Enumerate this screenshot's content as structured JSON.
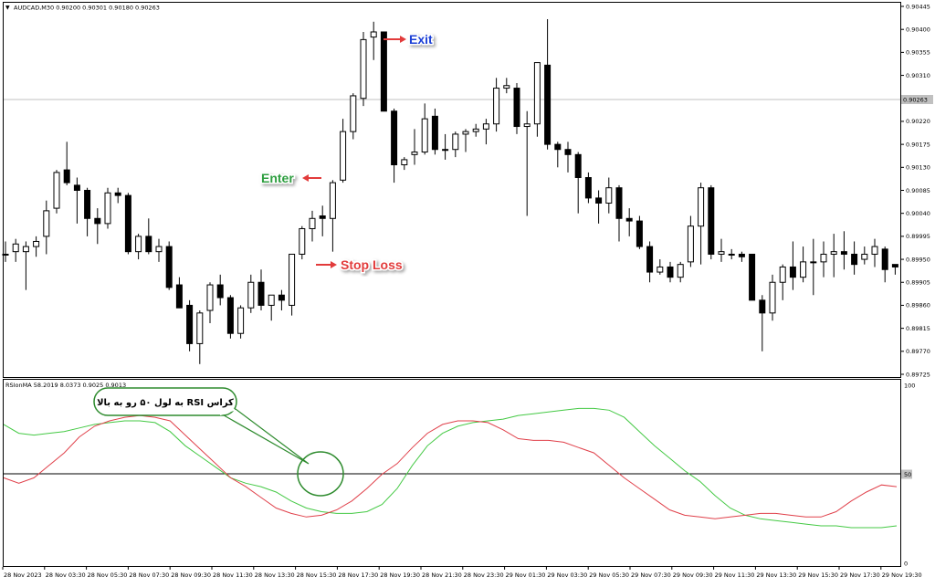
{
  "symbol_info": "AUDCAD,M30  0.90200 0.90301 0.90180 0.90263",
  "current_price_label": "0.90263",
  "price_axis_labels": [
    "0.90445",
    "0.90400",
    "0.90355",
    "0.90310",
    "0.90220",
    "0.90175",
    "0.90130",
    "0.90085",
    "0.90040",
    "0.89995",
    "0.89950",
    "0.89905",
    "0.89860",
    "0.89815",
    "0.89770",
    "0.89725"
  ],
  "indicator_info": "RSIonMA 58.2019 8.0373 0.9025 0.9013",
  "indicator_axis_labels": [
    "100",
    "50",
    "0"
  ],
  "time_labels": [
    "28 Nov 2023",
    "28 Nov 03:30",
    "28 Nov 05:30",
    "28 Nov 07:30",
    "28 Nov 09:30",
    "28 Nov 11:30",
    "28 Nov 13:30",
    "28 Nov 15:30",
    "28 Nov 17:30",
    "28 Nov 19:30",
    "28 Nov 21:30",
    "28 Nov 23:30",
    "29 Nov 01:30",
    "29 Nov 03:30",
    "29 Nov 05:30",
    "29 Nov 07:30",
    "29 Nov 09:30",
    "29 Nov 11:30",
    "29 Nov 13:30",
    "29 Nov 15:30",
    "29 Nov 17:30",
    "29 Nov 19:30"
  ],
  "annotations": {
    "exit": "Exit",
    "enter": "Enter",
    "stop_loss": "Stop Loss",
    "callout": "کراس RSI به لول ۵۰ رو به بالا"
  },
  "colors": {
    "bull_candle": "#ffffff",
    "bear_candle": "#000000",
    "rsi_line": "#e0404a",
    "ma_line": "#44c944",
    "exit_text": "#1a3fd6",
    "enter_text": "#2e9e3f",
    "stop_text": "#e23b3b",
    "arrow": "#e23b3b",
    "callout_border": "#2e8b2e"
  },
  "chart_data": [
    {
      "type": "candlestick",
      "symbol": "AUDCAD",
      "timeframe": "M30",
      "current_price": 0.90263,
      "ylim": [
        0.89725,
        0.90445
      ],
      "candles": [
        {
          "o": 0.8996,
          "h": 0.89985,
          "l": 0.89945,
          "c": 0.8996
        },
        {
          "o": 0.89965,
          "h": 0.8999,
          "l": 0.89945,
          "c": 0.8998
        },
        {
          "o": 0.89965,
          "h": 0.89985,
          "l": 0.8989,
          "c": 0.89975
        },
        {
          "o": 0.89975,
          "h": 0.89995,
          "l": 0.89955,
          "c": 0.89985
        },
        {
          "o": 0.89995,
          "h": 0.90065,
          "l": 0.8996,
          "c": 0.90045
        },
        {
          "o": 0.9005,
          "h": 0.90125,
          "l": 0.9004,
          "c": 0.9012
        },
        {
          "o": 0.90125,
          "h": 0.9018,
          "l": 0.90095,
          "c": 0.901
        },
        {
          "o": 0.90095,
          "h": 0.9011,
          "l": 0.9002,
          "c": 0.90085
        },
        {
          "o": 0.90085,
          "h": 0.9009,
          "l": 0.89995,
          "c": 0.9003
        },
        {
          "o": 0.9003,
          "h": 0.9005,
          "l": 0.8998,
          "c": 0.9002
        },
        {
          "o": 0.9002,
          "h": 0.9009,
          "l": 0.9001,
          "c": 0.9008
        },
        {
          "o": 0.9008,
          "h": 0.9009,
          "l": 0.9006,
          "c": 0.90075
        },
        {
          "o": 0.90075,
          "h": 0.9008,
          "l": 0.8996,
          "c": 0.89965
        },
        {
          "o": 0.89965,
          "h": 0.9,
          "l": 0.8995,
          "c": 0.89995
        },
        {
          "o": 0.89995,
          "h": 0.9003,
          "l": 0.8996,
          "c": 0.89965
        },
        {
          "o": 0.89965,
          "h": 0.8999,
          "l": 0.89945,
          "c": 0.89975
        },
        {
          "o": 0.89975,
          "h": 0.89985,
          "l": 0.8989,
          "c": 0.89895
        },
        {
          "o": 0.899,
          "h": 0.89915,
          "l": 0.89855,
          "c": 0.89855
        },
        {
          "o": 0.8986,
          "h": 0.8987,
          "l": 0.8977,
          "c": 0.89785
        },
        {
          "o": 0.89785,
          "h": 0.8985,
          "l": 0.89745,
          "c": 0.89845
        },
        {
          "o": 0.8985,
          "h": 0.89905,
          "l": 0.89825,
          "c": 0.899
        },
        {
          "o": 0.899,
          "h": 0.8992,
          "l": 0.8986,
          "c": 0.89875
        },
        {
          "o": 0.89875,
          "h": 0.8988,
          "l": 0.89795,
          "c": 0.89805
        },
        {
          "o": 0.89805,
          "h": 0.8986,
          "l": 0.89795,
          "c": 0.89855
        },
        {
          "o": 0.89855,
          "h": 0.8992,
          "l": 0.89845,
          "c": 0.89905
        },
        {
          "o": 0.89905,
          "h": 0.8993,
          "l": 0.8985,
          "c": 0.8986
        },
        {
          "o": 0.8986,
          "h": 0.8988,
          "l": 0.8983,
          "c": 0.8988
        },
        {
          "o": 0.8988,
          "h": 0.8989,
          "l": 0.8985,
          "c": 0.8987
        },
        {
          "o": 0.8986,
          "h": 0.8996,
          "l": 0.8984,
          "c": 0.8996
        },
        {
          "o": 0.8996,
          "h": 0.90015,
          "l": 0.8995,
          "c": 0.9001
        },
        {
          "o": 0.9001,
          "h": 0.90045,
          "l": 0.89985,
          "c": 0.9003
        },
        {
          "o": 0.90035,
          "h": 0.90055,
          "l": 0.89995,
          "c": 0.9003
        },
        {
          "o": 0.9003,
          "h": 0.90105,
          "l": 0.89965,
          "c": 0.901
        },
        {
          "o": 0.90105,
          "h": 0.90225,
          "l": 0.901,
          "c": 0.902
        },
        {
          "o": 0.902,
          "h": 0.90275,
          "l": 0.90185,
          "c": 0.9027
        },
        {
          "o": 0.90265,
          "h": 0.90395,
          "l": 0.9025,
          "c": 0.9038
        },
        {
          "o": 0.90385,
          "h": 0.90415,
          "l": 0.9034,
          "c": 0.90395
        },
        {
          "o": 0.90395,
          "h": 0.90395,
          "l": 0.9024,
          "c": 0.9024
        },
        {
          "o": 0.9024,
          "h": 0.90245,
          "l": 0.901,
          "c": 0.90135
        },
        {
          "o": 0.90135,
          "h": 0.9015,
          "l": 0.90125,
          "c": 0.90145
        },
        {
          "o": 0.90155,
          "h": 0.90205,
          "l": 0.90135,
          "c": 0.9016
        },
        {
          "o": 0.9016,
          "h": 0.90255,
          "l": 0.90155,
          "c": 0.90225
        },
        {
          "o": 0.9023,
          "h": 0.90245,
          "l": 0.90155,
          "c": 0.90165
        },
        {
          "o": 0.90165,
          "h": 0.90195,
          "l": 0.90145,
          "c": 0.90165
        },
        {
          "o": 0.90165,
          "h": 0.902,
          "l": 0.9015,
          "c": 0.90195
        },
        {
          "o": 0.90195,
          "h": 0.90205,
          "l": 0.9016,
          "c": 0.902
        },
        {
          "o": 0.902,
          "h": 0.90215,
          "l": 0.9019,
          "c": 0.90205
        },
        {
          "o": 0.90205,
          "h": 0.90225,
          "l": 0.90175,
          "c": 0.90215
        },
        {
          "o": 0.90215,
          "h": 0.90305,
          "l": 0.902,
          "c": 0.90285
        },
        {
          "o": 0.90285,
          "h": 0.90305,
          "l": 0.90275,
          "c": 0.9029
        },
        {
          "o": 0.90285,
          "h": 0.90295,
          "l": 0.90195,
          "c": 0.9021
        },
        {
          "o": 0.9021,
          "h": 0.9024,
          "l": 0.90035,
          "c": 0.90215
        },
        {
          "o": 0.90215,
          "h": 0.90335,
          "l": 0.9019,
          "c": 0.90335
        },
        {
          "o": 0.9033,
          "h": 0.9042,
          "l": 0.90165,
          "c": 0.90175
        },
        {
          "o": 0.90175,
          "h": 0.9018,
          "l": 0.9013,
          "c": 0.90165
        },
        {
          "o": 0.90165,
          "h": 0.9018,
          "l": 0.9012,
          "c": 0.90155
        },
        {
          "o": 0.90155,
          "h": 0.9016,
          "l": 0.9004,
          "c": 0.9011
        },
        {
          "o": 0.9011,
          "h": 0.9012,
          "l": 0.9006,
          "c": 0.9007
        },
        {
          "o": 0.9007,
          "h": 0.90085,
          "l": 0.9002,
          "c": 0.9006
        },
        {
          "o": 0.9006,
          "h": 0.9011,
          "l": 0.9004,
          "c": 0.9009
        },
        {
          "o": 0.9009,
          "h": 0.90095,
          "l": 0.89985,
          "c": 0.9003
        },
        {
          "o": 0.9003,
          "h": 0.9005,
          "l": 0.89995,
          "c": 0.90025
        },
        {
          "o": 0.90025,
          "h": 0.90035,
          "l": 0.8997,
          "c": 0.89975
        },
        {
          "o": 0.89975,
          "h": 0.89985,
          "l": 0.89905,
          "c": 0.89925
        },
        {
          "o": 0.89925,
          "h": 0.8995,
          "l": 0.8992,
          "c": 0.89935
        },
        {
          "o": 0.89935,
          "h": 0.89945,
          "l": 0.89905,
          "c": 0.89915
        },
        {
          "o": 0.89915,
          "h": 0.89945,
          "l": 0.89905,
          "c": 0.8994
        },
        {
          "o": 0.89945,
          "h": 0.90035,
          "l": 0.89935,
          "c": 0.90015
        },
        {
          "o": 0.90015,
          "h": 0.901,
          "l": 0.8994,
          "c": 0.9009
        },
        {
          "o": 0.9009,
          "h": 0.90095,
          "l": 0.8995,
          "c": 0.8996
        },
        {
          "o": 0.8996,
          "h": 0.8999,
          "l": 0.89945,
          "c": 0.89965
        },
        {
          "o": 0.8996,
          "h": 0.8997,
          "l": 0.8995,
          "c": 0.8996
        },
        {
          "o": 0.8996,
          "h": 0.89965,
          "l": 0.89945,
          "c": 0.89955
        },
        {
          "o": 0.8996,
          "h": 0.8996,
          "l": 0.8987,
          "c": 0.8987
        },
        {
          "o": 0.8987,
          "h": 0.8988,
          "l": 0.8977,
          "c": 0.89845
        },
        {
          "o": 0.89845,
          "h": 0.8992,
          "l": 0.8983,
          "c": 0.89905
        },
        {
          "o": 0.89905,
          "h": 0.8994,
          "l": 0.8987,
          "c": 0.89935
        },
        {
          "o": 0.89935,
          "h": 0.89985,
          "l": 0.8989,
          "c": 0.89915
        },
        {
          "o": 0.89915,
          "h": 0.89975,
          "l": 0.89905,
          "c": 0.89945
        },
        {
          "o": 0.89945,
          "h": 0.8999,
          "l": 0.8988,
          "c": 0.89945
        },
        {
          "o": 0.89945,
          "h": 0.89985,
          "l": 0.89915,
          "c": 0.8996
        },
        {
          "o": 0.8996,
          "h": 0.9,
          "l": 0.89915,
          "c": 0.89965
        },
        {
          "o": 0.89965,
          "h": 0.90005,
          "l": 0.8993,
          "c": 0.8996
        },
        {
          "o": 0.8996,
          "h": 0.89985,
          "l": 0.8992,
          "c": 0.8994
        },
        {
          "o": 0.8995,
          "h": 0.89975,
          "l": 0.8994,
          "c": 0.8996
        },
        {
          "o": 0.8996,
          "h": 0.8999,
          "l": 0.89935,
          "c": 0.89975
        },
        {
          "o": 0.8997,
          "h": 0.89975,
          "l": 0.89905,
          "c": 0.8993
        },
        {
          "o": 0.8994,
          "h": 0.8994,
          "l": 0.8992,
          "c": 0.89935
        }
      ]
    },
    {
      "type": "line",
      "indicator": "RSIonMA",
      "ylim": [
        0,
        100
      ],
      "level": 50,
      "series": [
        {
          "values": [
            48,
            45,
            48,
            55,
            62,
            71,
            77,
            80,
            82,
            83,
            82,
            80,
            72,
            64,
            56,
            48,
            43,
            37,
            31,
            28,
            26,
            27,
            30,
            35,
            42,
            50,
            56,
            65,
            73,
            78,
            80,
            80,
            79,
            75,
            70,
            69,
            69,
            68,
            65,
            62,
            55,
            48,
            42,
            36,
            30,
            27,
            26,
            25,
            26,
            27,
            28,
            28,
            27,
            26,
            26,
            29,
            35,
            40,
            44,
            43
          ]
        },
        {
          "values": [
            78,
            73,
            72,
            73,
            74,
            76,
            78,
            79,
            80,
            80,
            79,
            74,
            66,
            60,
            54,
            48,
            45,
            43,
            40,
            35,
            31,
            29,
            28,
            28,
            29,
            33,
            42,
            55,
            66,
            73,
            77,
            79,
            80,
            81,
            83,
            84,
            85,
            86,
            87,
            87,
            86,
            82,
            74,
            66,
            59,
            52,
            46,
            38,
            31,
            27,
            25,
            24,
            23,
            22,
            21,
            21,
            20,
            20,
            20,
            21
          ]
        }
      ]
    }
  ]
}
